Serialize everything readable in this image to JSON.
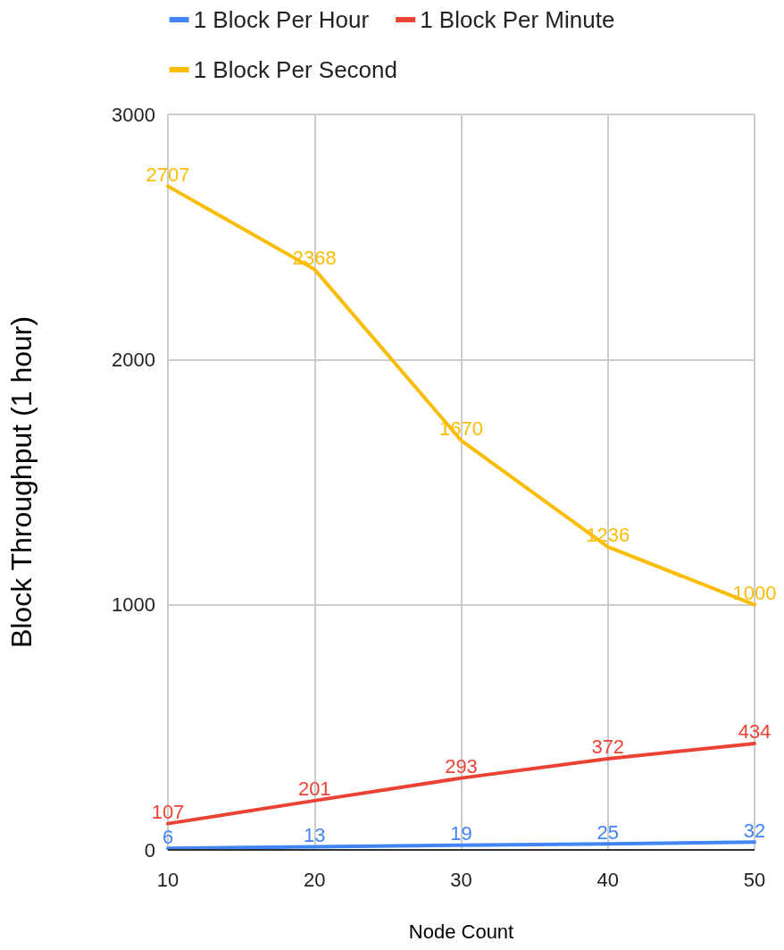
{
  "chart_data": {
    "type": "line",
    "xlabel": "Node Count",
    "ylabel": "Block Throughput (1 hour)",
    "x": [
      10,
      20,
      30,
      40,
      50
    ],
    "series": [
      {
        "name": "1 Block Per Hour",
        "color": "#4285f4",
        "values": [
          6,
          13,
          19,
          25,
          32
        ]
      },
      {
        "name": "1 Block Per Minute",
        "color": "#ea4335",
        "values": [
          107,
          201,
          293,
          372,
          434
        ]
      },
      {
        "name": "1 Block Per Second",
        "color": "#fbbc04",
        "values": [
          2707,
          2368,
          1670,
          1236,
          1000
        ]
      }
    ],
    "xlim": [
      10,
      50
    ],
    "xticks": [
      10,
      20,
      30,
      40,
      50
    ],
    "ylim": [
      0,
      3000
    ],
    "yticks": [
      0,
      1000,
      2000,
      3000
    ],
    "grid": true,
    "legend": "top",
    "data_labels": true,
    "marker": "none",
    "line_style": "solid"
  }
}
